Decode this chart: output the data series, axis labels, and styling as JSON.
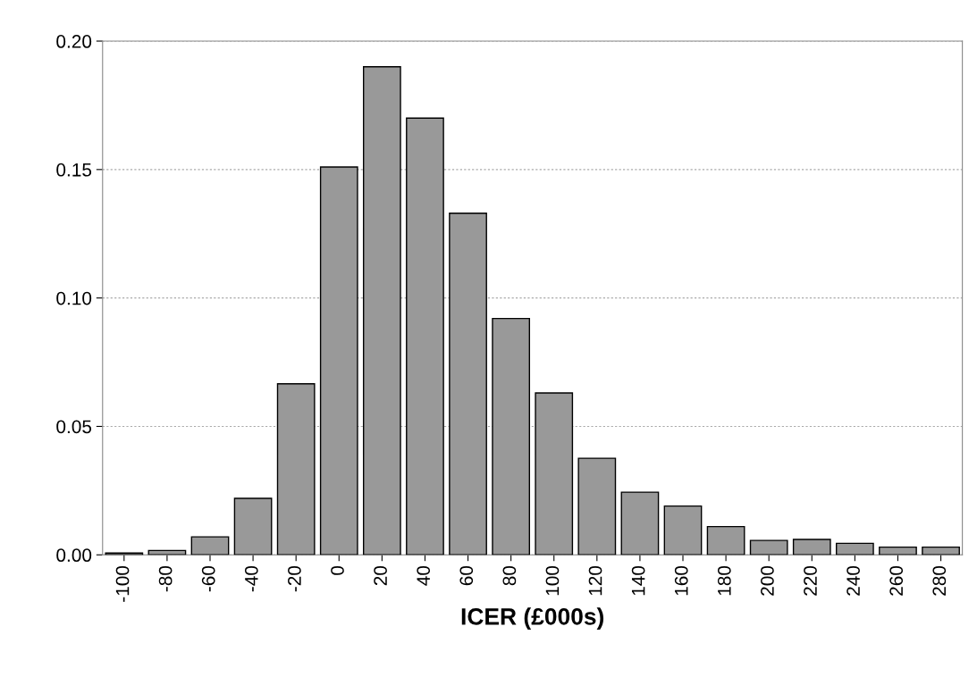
{
  "chart_data": {
    "type": "bar",
    "xlabel": "ICER (£000s)",
    "categories": [
      "-100",
      "-80",
      "-60",
      "-40",
      "-20",
      "0",
      "20",
      "40",
      "60",
      "80",
      "100",
      "120",
      "140",
      "160",
      "180",
      "200",
      "220",
      "240",
      "260",
      "280"
    ],
    "values": [
      0.0007,
      0.0017,
      0.007,
      0.022,
      0.0666,
      0.151,
      0.19,
      0.17,
      0.133,
      0.092,
      0.063,
      0.0376,
      0.0244,
      0.019,
      0.011,
      0.0056,
      0.006,
      0.0045,
      0.003,
      0.003
    ],
    "color": "#999999",
    "ylim": [
      0,
      0.2
    ],
    "yticks": [
      {
        "value": 0,
        "label": "0.00"
      },
      {
        "value": 0.05,
        "label": "0.05"
      },
      {
        "value": 0.1,
        "label": "0.10"
      },
      {
        "value": 0.15,
        "label": "0.15"
      },
      {
        "value": 0.2,
        "label": "0.20"
      }
    ],
    "grid": "y"
  }
}
